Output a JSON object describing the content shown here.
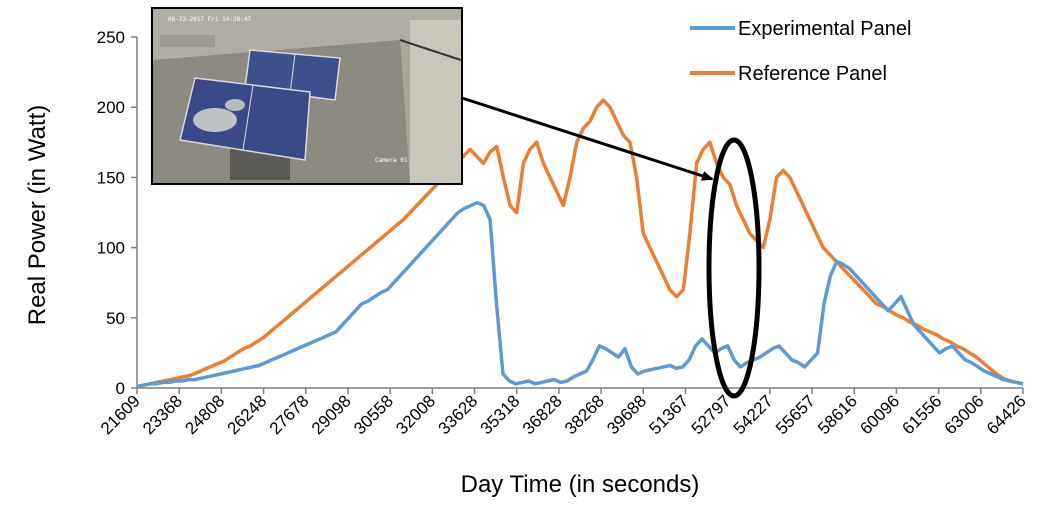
{
  "chart_data": {
    "type": "line",
    "title": "",
    "xlabel": "Day Time (in seconds)",
    "ylabel": "Real Power (in Watt)",
    "ylim": [
      0,
      250
    ],
    "yticks": [
      0,
      50,
      100,
      150,
      200,
      250
    ],
    "x_tick_labels": [
      "21609",
      "23368",
      "24808",
      "26248",
      "27678",
      "29098",
      "30558",
      "32008",
      "33628",
      "35318",
      "36828",
      "38268",
      "39688",
      "51367",
      "52797",
      "54227",
      "55657",
      "58616",
      "60096",
      "61556",
      "63006",
      "64426"
    ],
    "grid": false,
    "legend_position": "top-right",
    "series": [
      {
        "name": "Experimental Panel",
        "color": "#5b9bd5",
        "values": [
          1,
          2,
          3,
          3,
          4,
          4,
          5,
          5,
          6,
          6,
          7,
          8,
          9,
          10,
          11,
          12,
          13,
          14,
          15,
          16,
          18,
          20,
          22,
          24,
          26,
          28,
          30,
          32,
          34,
          36,
          38,
          40,
          45,
          50,
          55,
          60,
          62,
          65,
          68,
          70,
          75,
          80,
          85,
          90,
          95,
          100,
          105,
          110,
          115,
          120,
          125,
          128,
          130,
          132,
          130,
          120,
          60,
          10,
          5,
          3,
          4,
          5,
          3,
          4,
          5,
          6,
          4,
          5,
          8,
          10,
          12,
          20,
          30,
          28,
          25,
          22,
          28,
          15,
          10,
          12,
          13,
          14,
          15,
          16,
          14,
          15,
          20,
          30,
          35,
          30,
          25,
          28,
          30,
          20,
          15,
          18,
          20,
          22,
          25,
          28,
          30,
          25,
          20,
          18,
          15,
          20,
          25,
          60,
          80,
          90,
          88,
          85,
          80,
          75,
          70,
          65,
          60,
          55,
          60,
          65,
          55,
          45,
          40,
          35,
          30,
          25,
          28,
          30,
          25,
          20,
          18,
          15,
          12,
          10,
          8,
          6,
          5,
          4,
          3
        ]
      },
      {
        "name": "Reference Panel",
        "color": "#ed7d31",
        "values": [
          1,
          2,
          3,
          4,
          5,
          6,
          7,
          8,
          9,
          11,
          13,
          15,
          17,
          19,
          22,
          25,
          28,
          30,
          33,
          36,
          40,
          44,
          48,
          52,
          56,
          60,
          64,
          68,
          72,
          76,
          80,
          84,
          88,
          92,
          96,
          100,
          104,
          108,
          112,
          116,
          120,
          125,
          130,
          135,
          140,
          145,
          150,
          155,
          160,
          165,
          170,
          165,
          160,
          168,
          172,
          150,
          130,
          125,
          160,
          170,
          175,
          160,
          150,
          140,
          130,
          150,
          175,
          185,
          190,
          200,
          205,
          200,
          190,
          180,
          175,
          150,
          110,
          100,
          90,
          80,
          70,
          65,
          70,
          110,
          160,
          170,
          175,
          160,
          150,
          145,
          130,
          120,
          110,
          105,
          100,
          120,
          150,
          155,
          150,
          140,
          130,
          120,
          110,
          100,
          95,
          90,
          85,
          80,
          75,
          70,
          65,
          60,
          58,
          55,
          52,
          50,
          47,
          45,
          42,
          40,
          38,
          35,
          33,
          30,
          28,
          25,
          22,
          18,
          14,
          10,
          7,
          5,
          4,
          3
        ]
      }
    ],
    "annotations": [
      {
        "type": "inset-photo",
        "label": "camera view of experimental and reference solar panels"
      },
      {
        "type": "ellipse-highlight"
      },
      {
        "type": "arrow"
      }
    ]
  },
  "inset": {
    "timestamp": "06-23-2017 Fri 14:26:47",
    "camera": "Camera 01"
  }
}
